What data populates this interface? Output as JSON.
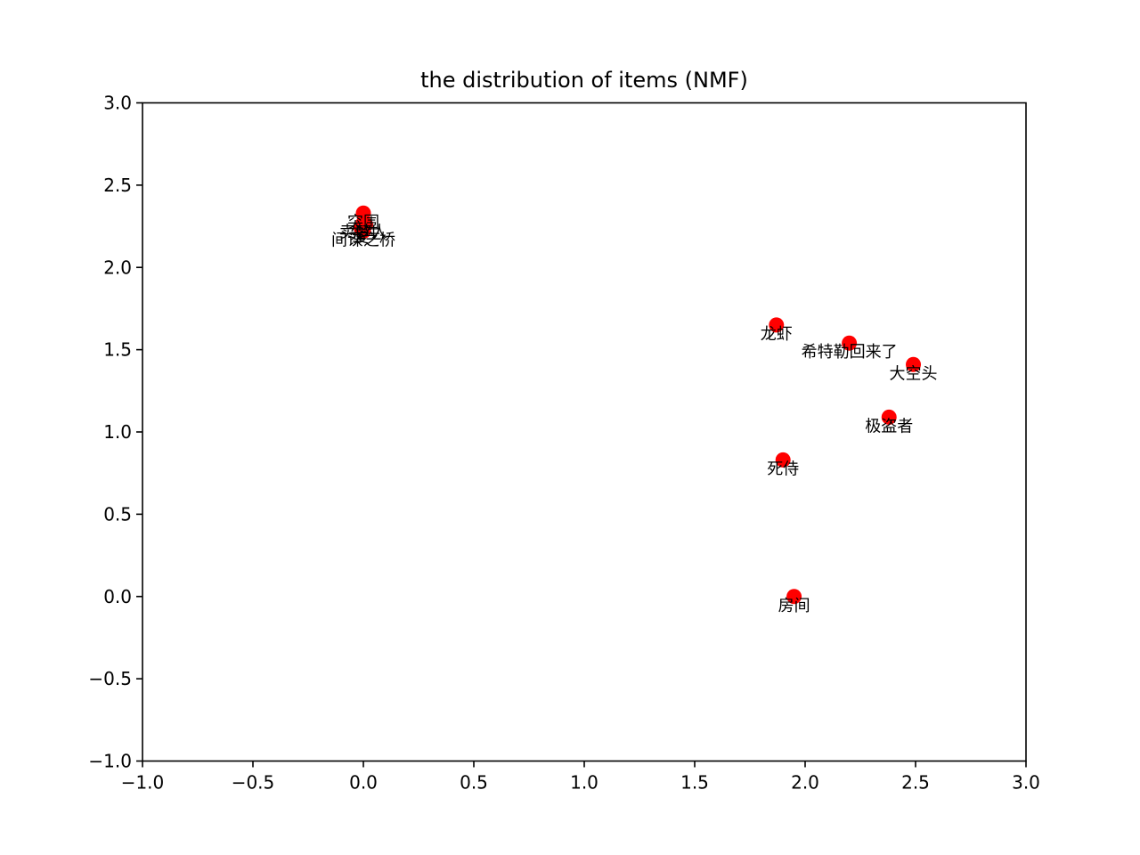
{
  "chart_data": {
    "type": "scatter",
    "title": "the distribution of items (NMF)",
    "xlabel": "",
    "ylabel": "",
    "xlim": [
      -1.0,
      3.0
    ],
    "ylim": [
      -1.0,
      3.0
    ],
    "x_ticks": [
      "−1.0",
      "−0.5",
      "0.0",
      "0.5",
      "1.0",
      "1.5",
      "2.0",
      "2.5",
      "3.0"
    ],
    "y_ticks": [
      "−1.0",
      "−0.5",
      "0.0",
      "0.5",
      "1.0",
      "1.5",
      "2.0",
      "2.5",
      "3.0"
    ],
    "grid": false,
    "legend": false,
    "marker_color": "#ff0000",
    "points": [
      {
        "label": "突围",
        "x": 0.0,
        "y": 2.33
      },
      {
        "label": "卖梦人",
        "x": 0.0,
        "y": 2.27
      },
      {
        "label": "先生",
        "x": 0.01,
        "y": 2.26
      },
      {
        "label": "爱",
        "x": -0.01,
        "y": 2.24
      },
      {
        "label": "间谍之桥",
        "x": 0.0,
        "y": 2.22
      },
      {
        "label": "龙虾",
        "x": 1.87,
        "y": 1.65
      },
      {
        "label": "希特勒回来了",
        "x": 2.2,
        "y": 1.54
      },
      {
        "label": "大空头",
        "x": 2.49,
        "y": 1.41
      },
      {
        "label": "极盗者",
        "x": 2.38,
        "y": 1.09
      },
      {
        "label": "死侍",
        "x": 1.9,
        "y": 0.83
      },
      {
        "label": "房间",
        "x": 1.95,
        "y": 0.0
      }
    ]
  }
}
